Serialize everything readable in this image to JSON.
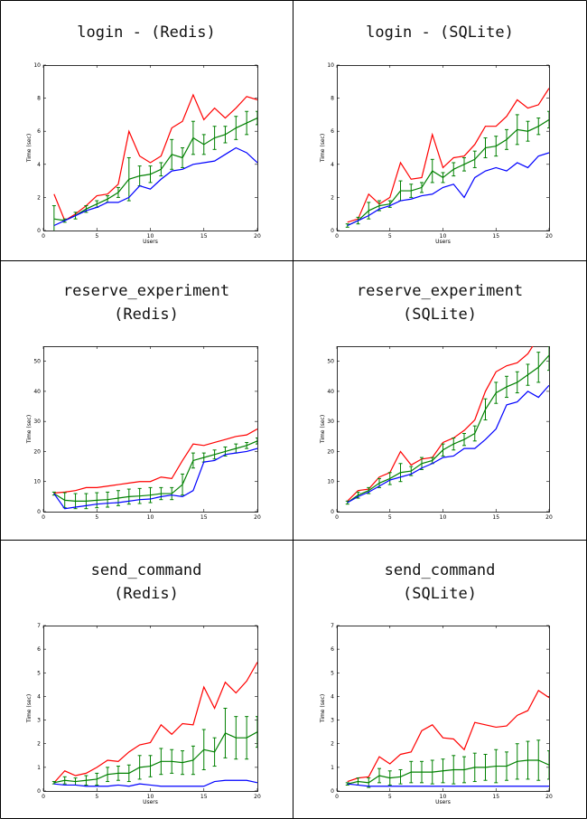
{
  "chart_data": [
    {
      "type": "line",
      "title_lines": [
        "login - (Redis)"
      ],
      "xlabel": "Users",
      "ylabel": "Time (sec)",
      "xlim": [
        0,
        20
      ],
      "ylim": [
        0,
        10
      ],
      "xticks": [
        0,
        5,
        10,
        15,
        20
      ],
      "yticks": [
        0,
        2,
        4,
        6,
        8,
        10
      ],
      "x": [
        1,
        2,
        3,
        4,
        5,
        6,
        7,
        8,
        9,
        10,
        11,
        12,
        13,
        14,
        15,
        16,
        17,
        18,
        19,
        20
      ],
      "series": [
        {
          "color": "#ff0000",
          "values": [
            2.2,
            0.6,
            1.0,
            1.5,
            2.1,
            2.2,
            2.8,
            6.0,
            4.5,
            4.1,
            4.5,
            6.2,
            6.6,
            8.2,
            6.7,
            7.4,
            6.8,
            7.4,
            8.1,
            7.9
          ]
        },
        {
          "color": "#008000",
          "values": [
            0.7,
            0.6,
            0.9,
            1.3,
            1.6,
            1.9,
            2.3,
            3.1,
            3.3,
            3.4,
            3.7,
            4.6,
            4.4,
            5.6,
            5.2,
            5.6,
            5.8,
            6.2,
            6.5,
            6.8
          ],
          "errors": [
            0.8,
            0.1,
            0.2,
            0.2,
            0.2,
            0.2,
            0.3,
            1.3,
            0.6,
            0.5,
            0.4,
            0.9,
            0.6,
            1.0,
            0.6,
            0.7,
            0.5,
            0.7,
            0.7,
            0.4
          ]
        },
        {
          "color": "#0000ff",
          "values": [
            0.3,
            0.6,
            0.9,
            1.2,
            1.4,
            1.7,
            1.7,
            2.0,
            2.7,
            2.5,
            3.1,
            3.6,
            3.7,
            4.0,
            4.1,
            4.2,
            4.6,
            5.0,
            4.7,
            4.1
          ]
        }
      ]
    },
    {
      "type": "line",
      "title_lines": [
        "login - (SQLite)"
      ],
      "xlabel": "Users",
      "ylabel": "Time (sec)",
      "xlim": [
        0,
        20
      ],
      "ylim": [
        0,
        10
      ],
      "xticks": [
        0,
        5,
        10,
        15,
        20
      ],
      "yticks": [
        0,
        2,
        4,
        6,
        8,
        10
      ],
      "x": [
        1,
        2,
        3,
        4,
        5,
        6,
        7,
        8,
        9,
        10,
        11,
        12,
        13,
        14,
        15,
        16,
        17,
        18,
        19,
        20
      ],
      "series": [
        {
          "color": "#ff0000",
          "values": [
            0.5,
            0.7,
            2.2,
            1.6,
            2.0,
            4.1,
            3.1,
            3.2,
            5.8,
            3.8,
            4.4,
            4.5,
            5.2,
            6.3,
            6.3,
            6.9,
            7.9,
            7.4,
            7.6,
            8.6
          ]
        },
        {
          "color": "#008000",
          "values": [
            0.3,
            0.6,
            1.2,
            1.5,
            1.6,
            2.4,
            2.4,
            2.6,
            3.6,
            3.2,
            3.7,
            4.0,
            4.3,
            5.0,
            5.1,
            5.5,
            6.1,
            6.0,
            6.3,
            6.7
          ],
          "errors": [
            0.1,
            0.2,
            0.5,
            0.3,
            0.2,
            0.6,
            0.4,
            0.3,
            0.7,
            0.3,
            0.4,
            0.4,
            0.5,
            0.6,
            0.6,
            0.6,
            0.9,
            0.6,
            0.5,
            0.5
          ]
        },
        {
          "color": "#0000ff",
          "values": [
            0.3,
            0.6,
            0.9,
            1.3,
            1.5,
            1.8,
            1.9,
            2.1,
            2.2,
            2.6,
            2.8,
            2.0,
            3.2,
            3.6,
            3.8,
            3.6,
            4.1,
            3.8,
            4.5,
            4.7
          ]
        }
      ]
    },
    {
      "type": "line",
      "title_lines": [
        "reserve_experiment",
        "(Redis)"
      ],
      "xlabel": "",
      "ylabel": "Time (sec)",
      "xlim": [
        0,
        20
      ],
      "ylim": [
        0,
        55
      ],
      "xticks": [
        0,
        5,
        10,
        15,
        20
      ],
      "yticks": [
        0,
        10,
        20,
        30,
        40,
        50
      ],
      "x": [
        1,
        2,
        3,
        4,
        5,
        6,
        7,
        8,
        9,
        10,
        11,
        12,
        13,
        14,
        15,
        16,
        17,
        18,
        19,
        20
      ],
      "series": [
        {
          "color": "#ff0000",
          "values": [
            6.2,
            6.5,
            7.0,
            8.0,
            8.0,
            8.5,
            9.0,
            9.5,
            10.0,
            10.0,
            11.5,
            11.0,
            17.0,
            22.5,
            22.0,
            23.0,
            24.0,
            25.0,
            25.5,
            27.5
          ]
        },
        {
          "color": "#008000",
          "values": [
            6.0,
            3.8,
            3.5,
            3.5,
            3.8,
            4.0,
            4.5,
            5.0,
            5.2,
            5.5,
            6.0,
            6.0,
            9.0,
            17.0,
            18.0,
            19.0,
            20.0,
            21.0,
            22.0,
            23.5
          ],
          "errors": [
            0.5,
            2.5,
            2.5,
            2.5,
            2.5,
            2.5,
            2.5,
            2.5,
            2.5,
            2.5,
            2.0,
            2.0,
            3.5,
            2.5,
            1.5,
            1.5,
            1.5,
            1.5,
            1.0,
            1.0
          ]
        },
        {
          "color": "#0000ff",
          "values": [
            6.0,
            1.0,
            1.5,
            2.0,
            2.5,
            2.8,
            3.0,
            3.5,
            4.0,
            4.2,
            5.0,
            5.5,
            5.0,
            7.0,
            16.5,
            17.0,
            19.0,
            19.5,
            20.0,
            21.0
          ]
        }
      ]
    },
    {
      "type": "line",
      "title_lines": [
        "reserve_experiment",
        "(SQLite)"
      ],
      "xlabel": "",
      "ylabel": "Time (sec)",
      "xlim": [
        0,
        20
      ],
      "ylim": [
        0,
        55
      ],
      "xticks": [
        0,
        5,
        10,
        15,
        20
      ],
      "yticks": [
        0,
        10,
        20,
        30,
        40,
        50
      ],
      "x": [
        1,
        2,
        3,
        4,
        5,
        6,
        7,
        8,
        9,
        10,
        11,
        12,
        13,
        14,
        15,
        16,
        17,
        18,
        19,
        20
      ],
      "series": [
        {
          "color": "#ff0000",
          "values": [
            3.5,
            7.0,
            7.5,
            11.5,
            13.0,
            20.0,
            15.5,
            17.5,
            18.0,
            23.0,
            24.5,
            27.0,
            30.5,
            40.0,
            46.5,
            48.5,
            49.5,
            52.5,
            58.0,
            58.0
          ]
        },
        {
          "color": "#008000",
          "values": [
            3.0,
            5.5,
            7.0,
            9.5,
            11.0,
            13.0,
            13.5,
            16.0,
            17.0,
            20.5,
            22.5,
            24.0,
            26.0,
            34.0,
            39.5,
            41.5,
            43.0,
            45.5,
            48.0,
            52.0
          ],
          "errors": [
            0.5,
            1.0,
            1.0,
            1.5,
            2.0,
            3.0,
            1.5,
            2.0,
            1.0,
            2.0,
            2.0,
            2.0,
            2.5,
            3.5,
            3.5,
            3.5,
            3.5,
            3.5,
            5.0,
            5.0
          ]
        },
        {
          "color": "#0000ff",
          "values": [
            3.0,
            5.0,
            6.5,
            8.5,
            10.5,
            11.5,
            12.5,
            14.5,
            16.0,
            18.0,
            18.5,
            21.0,
            21.0,
            24.0,
            27.5,
            35.5,
            36.5,
            40.0,
            38.0,
            42.0
          ]
        }
      ]
    },
    {
      "type": "line",
      "title_lines": [
        "send_command",
        "(Redis)"
      ],
      "xlabel": "Users",
      "ylabel": "Time (sec)",
      "xlim": [
        0,
        20
      ],
      "ylim": [
        0,
        7
      ],
      "xticks": [
        0,
        5,
        10,
        15,
        20
      ],
      "yticks": [
        0,
        1,
        2,
        3,
        4,
        5,
        6,
        7
      ],
      "x": [
        1,
        2,
        3,
        4,
        5,
        6,
        7,
        8,
        9,
        10,
        11,
        12,
        13,
        14,
        15,
        16,
        17,
        18,
        19,
        20
      ],
      "series": [
        {
          "color": "#ff0000",
          "values": [
            0.35,
            0.85,
            0.65,
            0.75,
            1.0,
            1.3,
            1.25,
            1.65,
            1.95,
            2.05,
            2.8,
            2.4,
            2.85,
            2.8,
            4.4,
            3.5,
            4.6,
            4.15,
            4.65,
            5.45
          ]
        },
        {
          "color": "#008000",
          "values": [
            0.35,
            0.45,
            0.4,
            0.45,
            0.5,
            0.7,
            0.75,
            0.75,
            1.0,
            1.05,
            1.25,
            1.25,
            1.2,
            1.3,
            1.75,
            1.65,
            2.45,
            2.25,
            2.25,
            2.5
          ],
          "errors": [
            0.05,
            0.15,
            0.15,
            0.2,
            0.25,
            0.3,
            0.3,
            0.35,
            0.5,
            0.45,
            0.55,
            0.5,
            0.5,
            0.6,
            0.85,
            0.6,
            1.05,
            0.9,
            0.9,
            0.65
          ]
        },
        {
          "color": "#0000ff",
          "values": [
            0.3,
            0.25,
            0.25,
            0.2,
            0.2,
            0.2,
            0.25,
            0.2,
            0.3,
            0.25,
            0.2,
            0.2,
            0.2,
            0.2,
            0.2,
            0.4,
            0.45,
            0.45,
            0.45,
            0.35
          ]
        }
      ]
    },
    {
      "type": "line",
      "title_lines": [
        "send_command",
        "(SQLite)"
      ],
      "xlabel": "Users",
      "ylabel": "Time (sec)",
      "xlim": [
        0,
        20
      ],
      "ylim": [
        0,
        7
      ],
      "xticks": [
        0,
        5,
        10,
        15,
        20
      ],
      "yticks": [
        0,
        1,
        2,
        3,
        4,
        5,
        6,
        7
      ],
      "x": [
        1,
        2,
        3,
        4,
        5,
        6,
        7,
        8,
        9,
        10,
        11,
        12,
        13,
        14,
        15,
        16,
        17,
        18,
        19,
        20
      ],
      "series": [
        {
          "color": "#ff0000",
          "values": [
            0.4,
            0.55,
            0.6,
            1.45,
            1.15,
            1.55,
            1.65,
            2.55,
            2.8,
            2.25,
            2.2,
            1.75,
            2.9,
            2.8,
            2.7,
            2.75,
            3.2,
            3.4,
            4.25,
            3.95
          ]
        },
        {
          "color": "#008000",
          "values": [
            0.3,
            0.4,
            0.35,
            0.65,
            0.55,
            0.6,
            0.8,
            0.8,
            0.8,
            0.85,
            0.9,
            0.9,
            1.0,
            1.0,
            1.05,
            1.05,
            1.25,
            1.3,
            1.3,
            1.1
          ],
          "errors": [
            0.05,
            0.15,
            0.2,
            0.3,
            0.3,
            0.3,
            0.45,
            0.45,
            0.5,
            0.5,
            0.6,
            0.55,
            0.6,
            0.55,
            0.7,
            0.6,
            0.75,
            0.8,
            0.85,
            0.6
          ]
        },
        {
          "color": "#0000ff",
          "values": [
            0.3,
            0.25,
            0.2,
            0.2,
            0.2,
            0.2,
            0.2,
            0.2,
            0.2,
            0.2,
            0.2,
            0.2,
            0.2,
            0.2,
            0.2,
            0.2,
            0.2,
            0.2,
            0.2,
            0.2
          ]
        }
      ]
    }
  ]
}
